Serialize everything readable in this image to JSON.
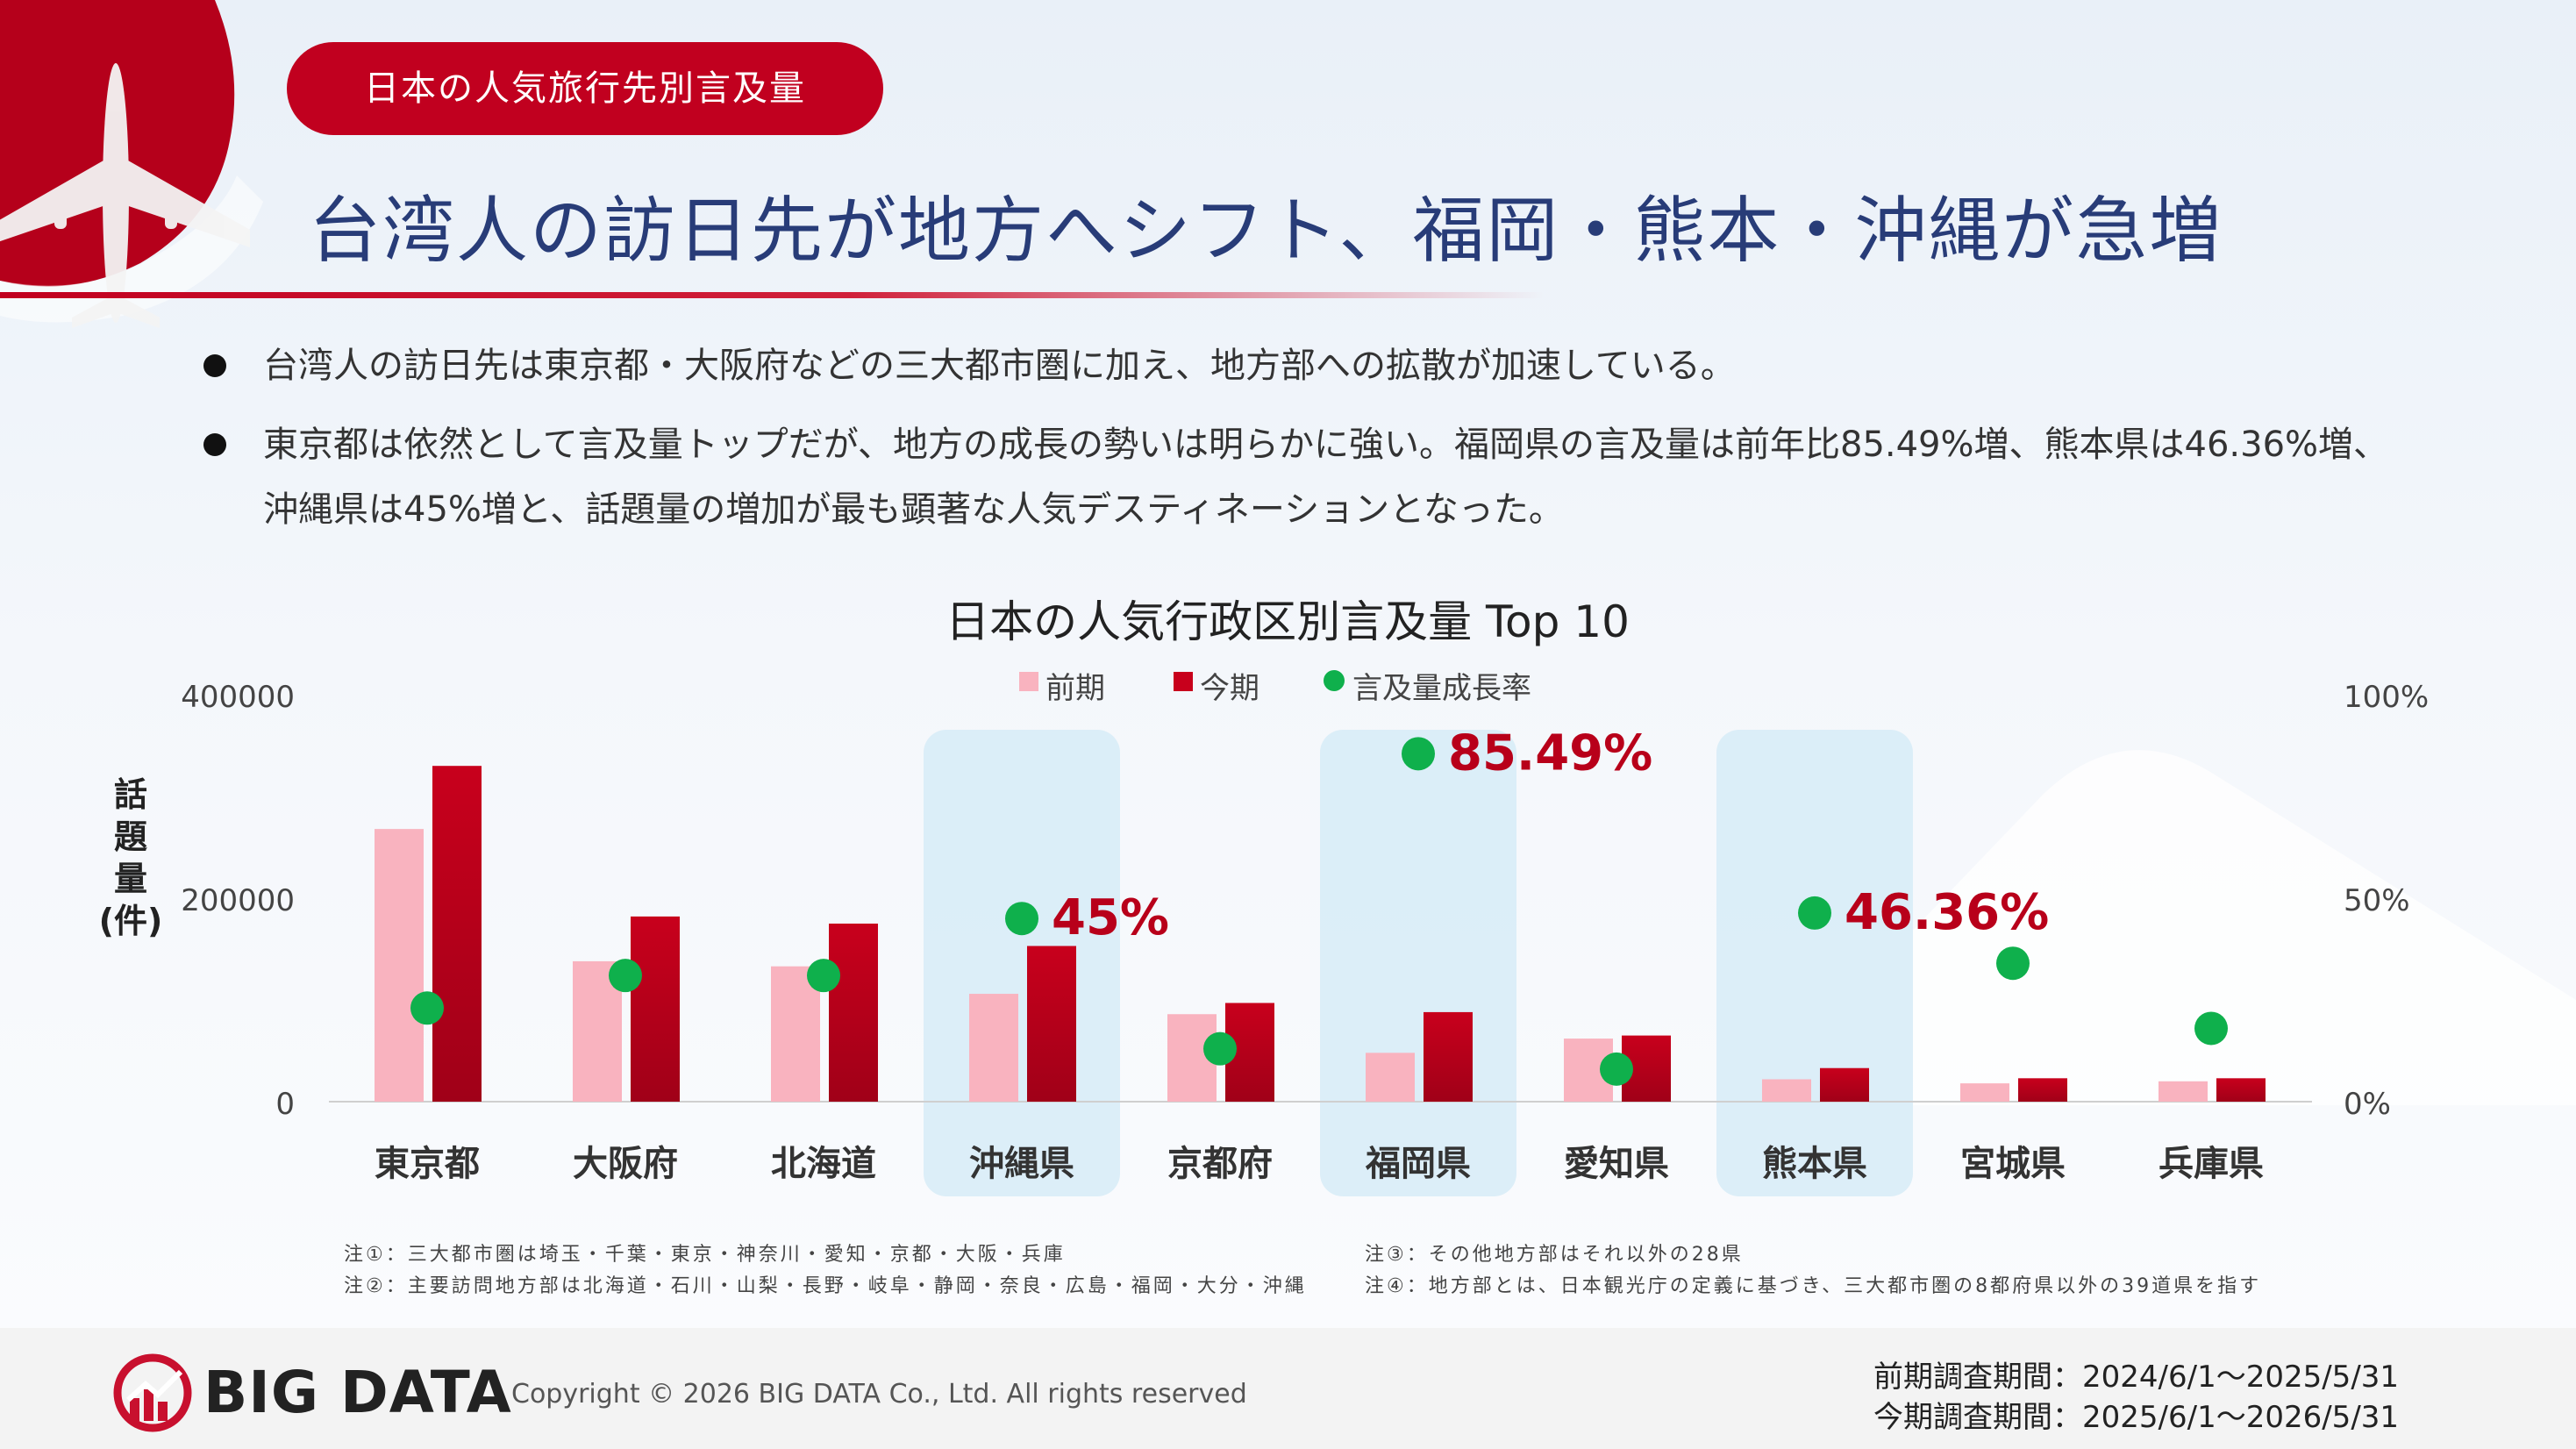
{
  "header": {
    "badge": "日本の人気旅行先別言及量",
    "headline": "台湾人の訪日先が地方へシフト、福岡・熊本・沖縄が急増"
  },
  "bullets": [
    "台湾人の訪日先は東京都・大阪府などの三大都市圏に加え、地方部への拡散が加速している。",
    "東京都は依然として言及量トップだが、地方の成長の勢いは明らかに強い。福岡県の言及量は前年比85.49%増、熊本県は46.36%増、",
    "沖縄県は45%増と、話題量の増加が最も顕著な人気デスティネーションとなった。"
  ],
  "chart_data": {
    "type": "bar",
    "title": "日本の人気行政区別言及量 Top 10",
    "ylabel": "話題量(件)",
    "ylim": [
      0,
      400000
    ],
    "y2lim": [
      0,
      100
    ],
    "yticks": [
      "400000",
      "200000",
      "0"
    ],
    "y2ticks": [
      "100%",
      "50%",
      "0%"
    ],
    "legend": [
      "前期",
      "今期",
      "言及量成長率"
    ],
    "legend_position": "top-center",
    "categories": [
      "東京都",
      "大阪府",
      "北海道",
      "沖縄県",
      "京都府",
      "福岡県",
      "愛知県",
      "熊本県",
      "宮城県",
      "兵庫県"
    ],
    "series": [
      {
        "name": "前期",
        "values": [
          268000,
          138000,
          133000,
          106000,
          86000,
          48000,
          62000,
          22000,
          18000,
          20000
        ],
        "color": "#f9b3bf"
      },
      {
        "name": "今期",
        "values": [
          330000,
          182000,
          175000,
          153000,
          97000,
          88000,
          65000,
          33000,
          23000,
          23000
        ],
        "color": "#c8001c"
      },
      {
        "name": "言及量成長率",
        "values": [
          23,
          31,
          31,
          45,
          13,
          85.49,
          8,
          46.36,
          34,
          18
        ],
        "color": "#0fb04c"
      }
    ],
    "highlighted": [
      "沖縄県",
      "福岡県",
      "熊本県"
    ],
    "growth_labels": [
      {
        "category": "沖縄県",
        "text": "45%"
      },
      {
        "category": "福岡県",
        "text": "85.49%"
      },
      {
        "category": "熊本県",
        "text": "46.36%"
      }
    ]
  },
  "notes": [
    "注①：三大都市圏は埼玉・千葉・東京・神奈川・愛知・京都・大阪・兵庫",
    "注②：主要訪問地方部は北海道・石川・山梨・長野・岐阜・静岡・奈良・広島・福岡・大分・沖縄",
    "注③：その他地方部はそれ以外の28県",
    "注④：地方部とは、日本観光庁の定義に基づき、三大都市圏の8都府県以外の39道県を指す"
  ],
  "footer": {
    "logo": "BIG DATA",
    "copyright": "Copyright © 2026 BIG DATA Co., Ltd. All rights reserved",
    "period_prev": "前期調査期間：2024/6/1～2025/5/31",
    "period_curr": "今期調査期間：2025/6/1～2026/5/31"
  }
}
